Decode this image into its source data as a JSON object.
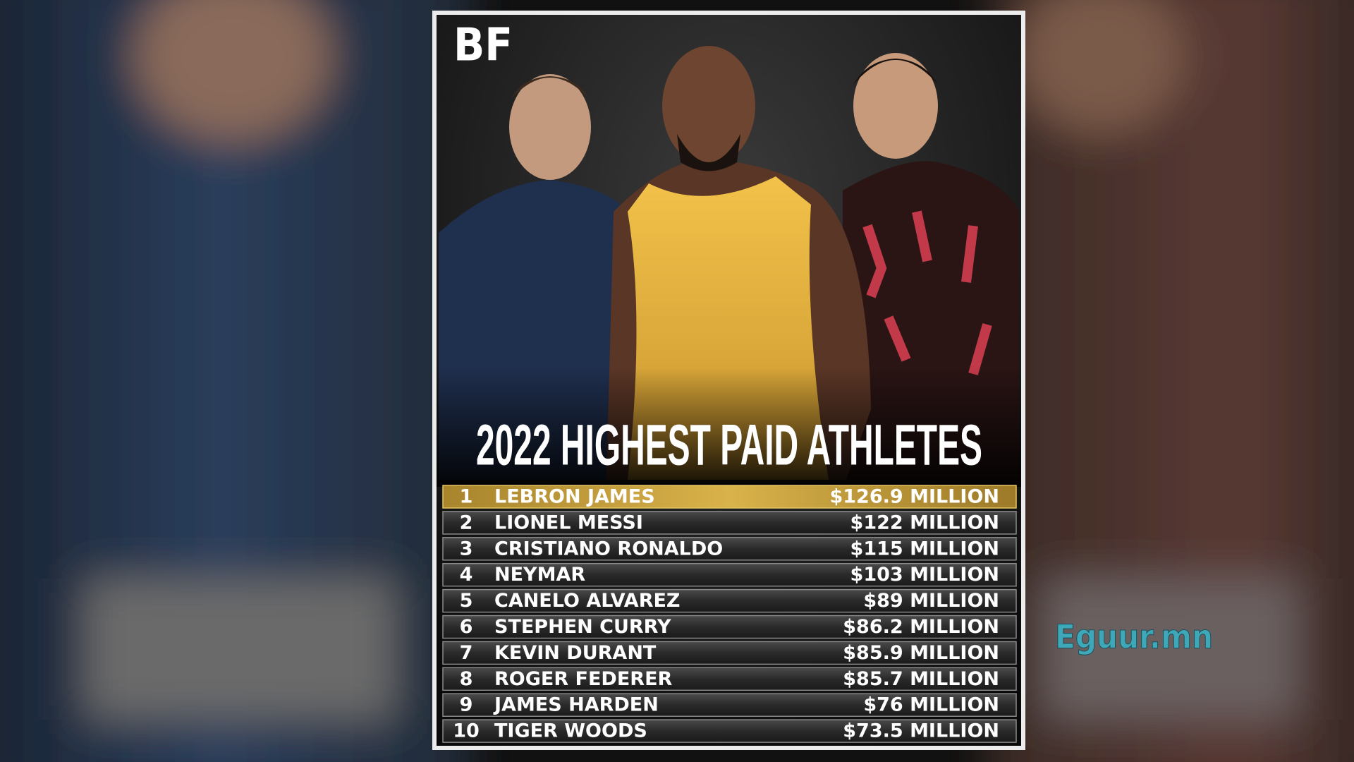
{
  "logo": "BF",
  "title": "2022 HIGHEST PAID ATHLETES",
  "table": {
    "rows": [
      [
        1,
        "LEBRON JAMES",
        "$126.9 MILLION"
      ],
      [
        2,
        "LIONEL MESSI",
        "$122 MILLION"
      ],
      [
        3,
        "CRISTIANO RONALDO",
        "$115 MILLION"
      ],
      [
        4,
        "NEYMAR",
        "$103 MILLION"
      ],
      [
        5,
        "CANELO ALVAREZ",
        "$89 MILLION"
      ],
      [
        6,
        "STEPHEN CURRY",
        "$86.2 MILLION"
      ],
      [
        7,
        "KEVIN DURANT",
        "$85.9 MILLION"
      ],
      [
        8,
        "ROGER FEDERER",
        "$85.7 MILLION"
      ],
      [
        9,
        "JAMES HARDEN",
        "$76 MILLION"
      ],
      [
        10,
        "TIGER WOODS",
        "$73.5 MILLION"
      ]
    ]
  },
  "watermark": "Eguur.mn"
}
